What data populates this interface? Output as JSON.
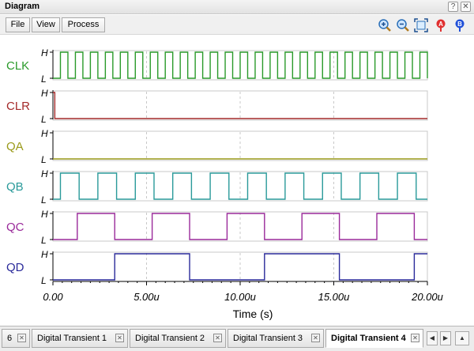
{
  "window": {
    "title": "Diagram",
    "help_label": "?",
    "close_label": "✕"
  },
  "menu": {
    "items": [
      "File",
      "View",
      "Process"
    ]
  },
  "toolbar": {
    "icons": [
      "zoom-in-icon",
      "zoom-out-icon",
      "fit-icon",
      "marker-a-icon",
      "marker-b-icon"
    ],
    "marker_a_label": "A",
    "marker_b_label": "B"
  },
  "tabs": {
    "items": [
      "6",
      "Digital Transient 1",
      "Digital Transient 2",
      "Digital Transient 3",
      "Digital Transient 4"
    ],
    "active_index": 4,
    "close_glyph": "✕",
    "nav_left": "◀",
    "nav_right": "▶",
    "nav_up": "▲"
  },
  "chart_data": {
    "type": "line",
    "subtype": "digital-timing",
    "xlabel": "Time (s)",
    "xlim": [
      0,
      20
    ],
    "x_ticks": [
      0,
      5,
      10,
      15,
      20
    ],
    "x_tick_labels": [
      "0.00",
      "5.00u",
      "10.00u",
      "15.00u",
      "20.00u"
    ],
    "level_labels": {
      "high": "H",
      "low": "L"
    },
    "grid": "dashed vertical at x ticks",
    "series": [
      {
        "name": "CLK",
        "color": "#2a9a2a",
        "initial": 0,
        "period": 0.8,
        "first_edge": 0.4,
        "transitions": []
      },
      {
        "name": "CLR",
        "color": "#a42a2a",
        "initial": 1,
        "transitions": [
          0.1
        ]
      },
      {
        "name": "QA",
        "color": "#9a9a1a",
        "initial": 0,
        "transitions": []
      },
      {
        "name": "QB",
        "color": "#2a9a9a",
        "initial": 0,
        "period": 2.0,
        "first_edge": 0.4,
        "pattern_note": "toggles every CLK rising edge after clear"
      },
      {
        "name": "QC",
        "color": "#9a2a9a",
        "initial": 0,
        "transitions": [
          1.3,
          3.3,
          5.3,
          7.3,
          9.3,
          11.3,
          13.3,
          15.3,
          17.3,
          19.3
        ]
      },
      {
        "name": "QD",
        "color": "#2a2a9a",
        "initial": 0,
        "transitions": [
          3.3,
          7.3,
          11.3,
          15.3,
          19.3
        ]
      }
    ]
  }
}
